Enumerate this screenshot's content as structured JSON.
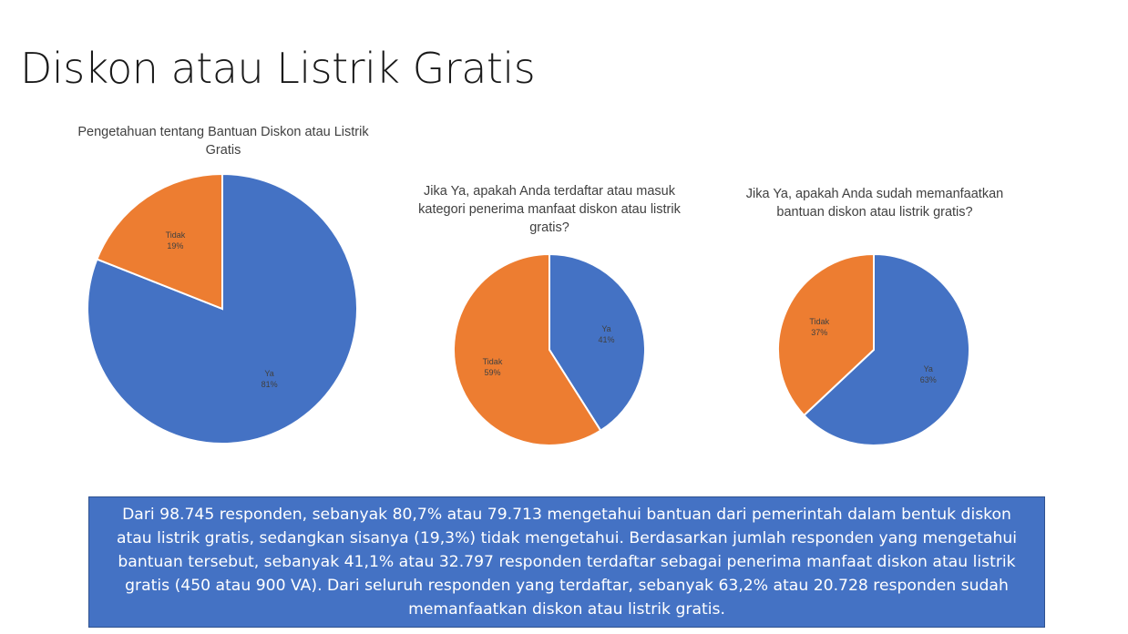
{
  "slide": {
    "title": "Diskon atau Listrik Gratis"
  },
  "colors": {
    "ya": "#4472c4",
    "tidak": "#ed7d31",
    "summary_bg": "#4472c4"
  },
  "chart_data": [
    {
      "type": "pie",
      "title": "Pengetahuan tentang Bantuan Diskon atau Listrik Gratis",
      "slices": [
        {
          "label": "Ya",
          "value": 81,
          "pct_label": "81%",
          "color": "#4472c4"
        },
        {
          "label": "Tidak",
          "value": 19,
          "pct_label": "19%",
          "color": "#ed7d31"
        }
      ]
    },
    {
      "type": "pie",
      "title": "Jika Ya, apakah Anda terdaftar atau masuk kategori penerima manfaat diskon atau listrik gratis?",
      "slices": [
        {
          "label": "Ya",
          "value": 41,
          "pct_label": "41%",
          "color": "#4472c4"
        },
        {
          "label": "Tidak",
          "value": 59,
          "pct_label": "59%",
          "color": "#ed7d31"
        }
      ]
    },
    {
      "type": "pie",
      "title": "Jika Ya, apakah Anda sudah memanfaatkan bantuan diskon atau listrik gratis?",
      "slices": [
        {
          "label": "Ya",
          "value": 63,
          "pct_label": "63%",
          "color": "#4472c4"
        },
        {
          "label": "Tidak",
          "value": 37,
          "pct_label": "37%",
          "color": "#ed7d31"
        }
      ]
    }
  ],
  "summary": {
    "text": "Dari 98.745 responden, sebanyak 80,7% atau 79.713 mengetahui bantuan dari pemerintah dalam bentuk diskon atau listrik gratis, sedangkan sisanya (19,3%) tidak mengetahui. Berdasarkan jumlah responden yang mengetahui bantuan tersebut, sebanyak 41,1% atau 32.797 responden terdaftar sebagai penerima manfaat diskon atau listrik gratis (450 atau 900 VA). Dari seluruh responden yang terdaftar, sebanyak 63,2% atau 20.728 responden sudah memanfaatkan diskon atau listrik gratis."
  }
}
